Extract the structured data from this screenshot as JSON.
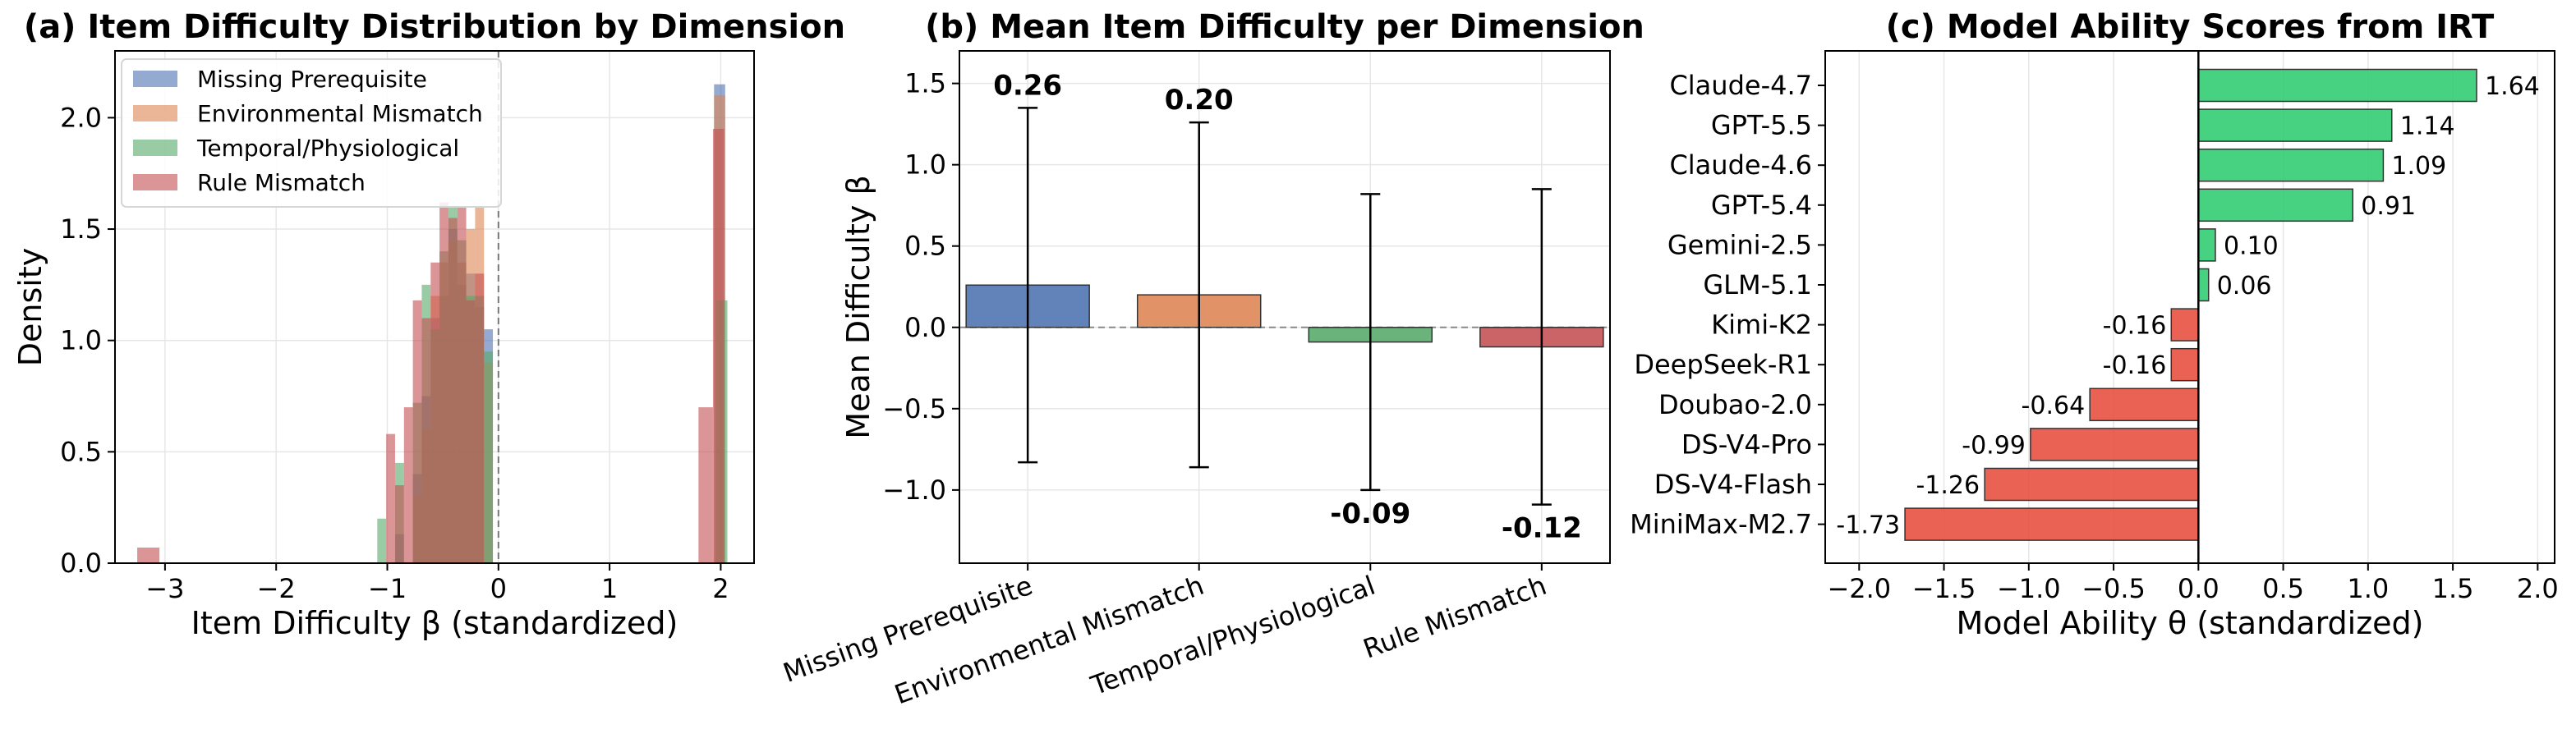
{
  "chart_data": [
    {
      "type": "histogram",
      "title": "(a) Item Difficulty Distribution by Dimension",
      "xlabel": "Item Difficulty β (standardized)",
      "ylabel": "Density",
      "xlim": [
        -3.45,
        2.3
      ],
      "ylim": [
        0,
        2.3
      ],
      "xticks": [
        -3,
        -2,
        -1,
        0,
        1,
        2
      ],
      "yticks": [
        0.0,
        0.5,
        1.0,
        1.5,
        2.0
      ],
      "xtick_labels": [
        "−3",
        "−2",
        "−1",
        "0",
        "1",
        "2"
      ],
      "ytick_labels": [
        "0.0",
        "0.5",
        "1.0",
        "1.5",
        "2.0"
      ],
      "grid": true,
      "legend_position": "top-left",
      "reference_line_x": 0,
      "series": [
        {
          "name": "Missing Prerequisite",
          "color": "#4c72b0",
          "bins": [
            [
              -0.93,
              -0.85,
              0.13
            ],
            [
              -0.77,
              -0.69,
              0.4
            ],
            [
              -0.69,
              -0.61,
              0.75
            ],
            [
              -0.61,
              -0.53,
              1.1
            ],
            [
              -0.53,
              -0.45,
              1.2
            ],
            [
              -0.45,
              -0.37,
              1.5
            ],
            [
              -0.37,
              -0.29,
              1.25
            ],
            [
              -0.29,
              -0.21,
              1.3
            ],
            [
              -0.21,
              -0.13,
              1.15
            ],
            [
              -0.13,
              -0.05,
              1.05
            ],
            [
              1.94,
              2.04,
              2.15
            ]
          ]
        },
        {
          "name": "Environmental Mismatch",
          "color": "#dd8452",
          "bins": [
            [
              -0.77,
              -0.69,
              0.3
            ],
            [
              -0.69,
              -0.61,
              0.6
            ],
            [
              -0.61,
              -0.53,
              1.2
            ],
            [
              -0.53,
              -0.45,
              1.35
            ],
            [
              -0.45,
              -0.37,
              1.45
            ],
            [
              -0.37,
              -0.29,
              1.35
            ],
            [
              -0.29,
              -0.21,
              1.5
            ],
            [
              -0.21,
              -0.13,
              1.6
            ],
            [
              -0.13,
              -0.05,
              0.9
            ],
            [
              1.94,
              2.04,
              2.1
            ]
          ]
        },
        {
          "name": "Temporal/Physiological",
          "color": "#55a868",
          "bins": [
            [
              -1.09,
              -1.01,
              0.2
            ],
            [
              -0.93,
              -0.85,
              0.45
            ],
            [
              -0.77,
              -0.69,
              0.72
            ],
            [
              -0.69,
              -0.61,
              1.25
            ],
            [
              -0.61,
              -0.53,
              1.05
            ],
            [
              -0.53,
              -0.45,
              1.4
            ],
            [
              -0.45,
              -0.37,
              1.6
            ],
            [
              -0.37,
              -0.29,
              1.45
            ],
            [
              -0.29,
              -0.21,
              1.2
            ],
            [
              -0.21,
              -0.13,
              1.2
            ],
            [
              -0.13,
              -0.05,
              0.95
            ],
            [
              1.96,
              2.06,
              1.18
            ]
          ]
        },
        {
          "name": "Rule Mismatch",
          "color": "#c44e52",
          "bins": [
            [
              -3.25,
              -3.05,
              0.07
            ],
            [
              -1.01,
              -0.93,
              0.58
            ],
            [
              -0.93,
              -0.85,
              0.35
            ],
            [
              -0.85,
              -0.77,
              0.7
            ],
            [
              -0.77,
              -0.69,
              1.18
            ],
            [
              -0.69,
              -0.61,
              1.1
            ],
            [
              -0.61,
              -0.53,
              1.35
            ],
            [
              -0.53,
              -0.45,
              1.62
            ],
            [
              -0.45,
              -0.37,
              1.55
            ],
            [
              -0.37,
              -0.29,
              1.6
            ],
            [
              -0.29,
              -0.21,
              1.18
            ],
            [
              -0.21,
              -0.13,
              1.3
            ],
            [
              1.8,
              1.93,
              0.7
            ],
            [
              1.93,
              2.03,
              1.95
            ]
          ]
        }
      ]
    },
    {
      "type": "bar",
      "title": "(b) Mean Item Difficulty per Dimension",
      "xlabel": "",
      "ylabel": "Mean Difficulty β",
      "ylim": [
        -1.45,
        1.7
      ],
      "yticks": [
        -1.0,
        -0.5,
        0.0,
        0.5,
        1.0,
        1.5
      ],
      "ytick_labels": [
        "−1.0",
        "−0.5",
        "0.0",
        "0.5",
        "1.0",
        "1.5"
      ],
      "grid": true,
      "categories": [
        "Missing Prerequisite",
        "Environmental Mismatch",
        "Temporal/Physiological",
        "Rule Mismatch"
      ],
      "values": [
        0.26,
        0.2,
        -0.09,
        -0.12
      ],
      "value_labels": [
        "0.26",
        "0.20",
        "-0.09",
        "-0.12"
      ],
      "error": [
        1.09,
        1.06,
        0.91,
        0.97
      ],
      "colors": [
        "#4c72b0",
        "#dd8452",
        "#55a868",
        "#c44e52"
      ]
    },
    {
      "type": "bar-horizontal",
      "title": "(c) Model Ability Scores from IRT",
      "xlabel": "Model Ability θ (standardized)",
      "ylabel": "",
      "xlim": [
        -2.2,
        2.1
      ],
      "xticks": [
        -2.0,
        -1.5,
        -1.0,
        -0.5,
        0.0,
        0.5,
        1.0,
        1.5,
        2.0
      ],
      "xtick_labels": [
        "−2.0",
        "−1.5",
        "−1.0",
        "−0.5",
        "0.0",
        "0.5",
        "1.0",
        "1.5",
        "2.0"
      ],
      "grid": true,
      "categories": [
        "Claude-4.7",
        "GPT-5.5",
        "Claude-4.6",
        "GPT-5.4",
        "Gemini-2.5",
        "GLM-5.1",
        "Kimi-K2",
        "DeepSeek-R1",
        "Doubao-2.0",
        "DS-V4-Pro",
        "DS-V4-Flash",
        "MiniMax-M2.7"
      ],
      "values": [
        1.64,
        1.14,
        1.09,
        0.91,
        0.1,
        0.06,
        -0.16,
        -0.16,
        -0.64,
        -0.99,
        -1.26,
        -1.73
      ],
      "value_labels": [
        "1.64",
        "1.14",
        "1.09",
        "0.91",
        "0.10",
        "0.06",
        "-0.16",
        "-0.16",
        "-0.64",
        "-0.99",
        "-1.26",
        "-1.73"
      ],
      "positive_color": "#2ecc71",
      "negative_color": "#e74c3c"
    }
  ]
}
